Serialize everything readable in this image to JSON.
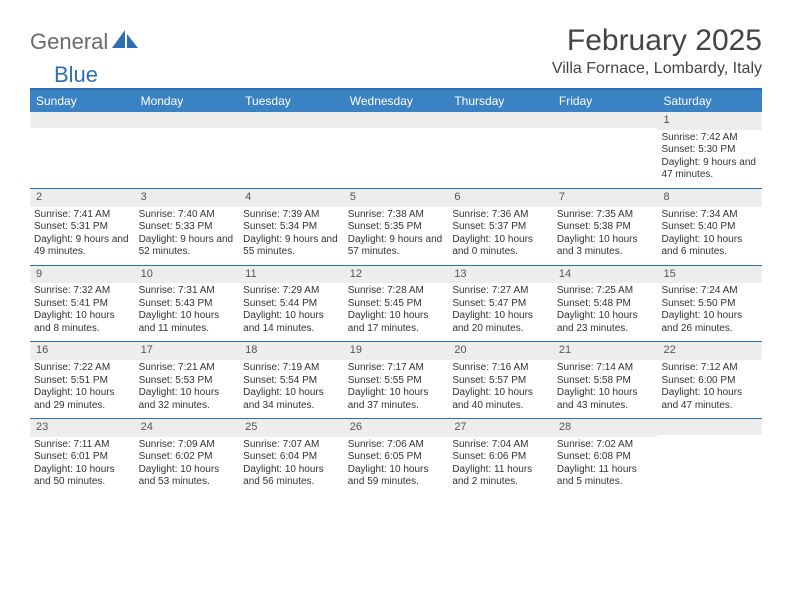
{
  "brand": {
    "part1": "General",
    "part2": "Blue"
  },
  "title": "February 2025",
  "location": "Villa Fornace, Lombardy, Italy",
  "header_bg": "#3b82c4",
  "rule_color": "#2f6fb0",
  "daynum_bg": "#ededed",
  "day_names": [
    "Sunday",
    "Monday",
    "Tuesday",
    "Wednesday",
    "Thursday",
    "Friday",
    "Saturday"
  ],
  "weeks": [
    [
      null,
      null,
      null,
      null,
      null,
      null,
      {
        "d": "1",
        "sr": "Sunrise: 7:42 AM",
        "ss": "Sunset: 5:30 PM",
        "dl": "Daylight: 9 hours and 47 minutes."
      }
    ],
    [
      {
        "d": "2",
        "sr": "Sunrise: 7:41 AM",
        "ss": "Sunset: 5:31 PM",
        "dl": "Daylight: 9 hours and 49 minutes."
      },
      {
        "d": "3",
        "sr": "Sunrise: 7:40 AM",
        "ss": "Sunset: 5:33 PM",
        "dl": "Daylight: 9 hours and 52 minutes."
      },
      {
        "d": "4",
        "sr": "Sunrise: 7:39 AM",
        "ss": "Sunset: 5:34 PM",
        "dl": "Daylight: 9 hours and 55 minutes."
      },
      {
        "d": "5",
        "sr": "Sunrise: 7:38 AM",
        "ss": "Sunset: 5:35 PM",
        "dl": "Daylight: 9 hours and 57 minutes."
      },
      {
        "d": "6",
        "sr": "Sunrise: 7:36 AM",
        "ss": "Sunset: 5:37 PM",
        "dl": "Daylight: 10 hours and 0 minutes."
      },
      {
        "d": "7",
        "sr": "Sunrise: 7:35 AM",
        "ss": "Sunset: 5:38 PM",
        "dl": "Daylight: 10 hours and 3 minutes."
      },
      {
        "d": "8",
        "sr": "Sunrise: 7:34 AM",
        "ss": "Sunset: 5:40 PM",
        "dl": "Daylight: 10 hours and 6 minutes."
      }
    ],
    [
      {
        "d": "9",
        "sr": "Sunrise: 7:32 AM",
        "ss": "Sunset: 5:41 PM",
        "dl": "Daylight: 10 hours and 8 minutes."
      },
      {
        "d": "10",
        "sr": "Sunrise: 7:31 AM",
        "ss": "Sunset: 5:43 PM",
        "dl": "Daylight: 10 hours and 11 minutes."
      },
      {
        "d": "11",
        "sr": "Sunrise: 7:29 AM",
        "ss": "Sunset: 5:44 PM",
        "dl": "Daylight: 10 hours and 14 minutes."
      },
      {
        "d": "12",
        "sr": "Sunrise: 7:28 AM",
        "ss": "Sunset: 5:45 PM",
        "dl": "Daylight: 10 hours and 17 minutes."
      },
      {
        "d": "13",
        "sr": "Sunrise: 7:27 AM",
        "ss": "Sunset: 5:47 PM",
        "dl": "Daylight: 10 hours and 20 minutes."
      },
      {
        "d": "14",
        "sr": "Sunrise: 7:25 AM",
        "ss": "Sunset: 5:48 PM",
        "dl": "Daylight: 10 hours and 23 minutes."
      },
      {
        "d": "15",
        "sr": "Sunrise: 7:24 AM",
        "ss": "Sunset: 5:50 PM",
        "dl": "Daylight: 10 hours and 26 minutes."
      }
    ],
    [
      {
        "d": "16",
        "sr": "Sunrise: 7:22 AM",
        "ss": "Sunset: 5:51 PM",
        "dl": "Daylight: 10 hours and 29 minutes."
      },
      {
        "d": "17",
        "sr": "Sunrise: 7:21 AM",
        "ss": "Sunset: 5:53 PM",
        "dl": "Daylight: 10 hours and 32 minutes."
      },
      {
        "d": "18",
        "sr": "Sunrise: 7:19 AM",
        "ss": "Sunset: 5:54 PM",
        "dl": "Daylight: 10 hours and 34 minutes."
      },
      {
        "d": "19",
        "sr": "Sunrise: 7:17 AM",
        "ss": "Sunset: 5:55 PM",
        "dl": "Daylight: 10 hours and 37 minutes."
      },
      {
        "d": "20",
        "sr": "Sunrise: 7:16 AM",
        "ss": "Sunset: 5:57 PM",
        "dl": "Daylight: 10 hours and 40 minutes."
      },
      {
        "d": "21",
        "sr": "Sunrise: 7:14 AM",
        "ss": "Sunset: 5:58 PM",
        "dl": "Daylight: 10 hours and 43 minutes."
      },
      {
        "d": "22",
        "sr": "Sunrise: 7:12 AM",
        "ss": "Sunset: 6:00 PM",
        "dl": "Daylight: 10 hours and 47 minutes."
      }
    ],
    [
      {
        "d": "23",
        "sr": "Sunrise: 7:11 AM",
        "ss": "Sunset: 6:01 PM",
        "dl": "Daylight: 10 hours and 50 minutes."
      },
      {
        "d": "24",
        "sr": "Sunrise: 7:09 AM",
        "ss": "Sunset: 6:02 PM",
        "dl": "Daylight: 10 hours and 53 minutes."
      },
      {
        "d": "25",
        "sr": "Sunrise: 7:07 AM",
        "ss": "Sunset: 6:04 PM",
        "dl": "Daylight: 10 hours and 56 minutes."
      },
      {
        "d": "26",
        "sr": "Sunrise: 7:06 AM",
        "ss": "Sunset: 6:05 PM",
        "dl": "Daylight: 10 hours and 59 minutes."
      },
      {
        "d": "27",
        "sr": "Sunrise: 7:04 AM",
        "ss": "Sunset: 6:06 PM",
        "dl": "Daylight: 11 hours and 2 minutes."
      },
      {
        "d": "28",
        "sr": "Sunrise: 7:02 AM",
        "ss": "Sunset: 6:08 PM",
        "dl": "Daylight: 11 hours and 5 minutes."
      },
      null
    ]
  ]
}
